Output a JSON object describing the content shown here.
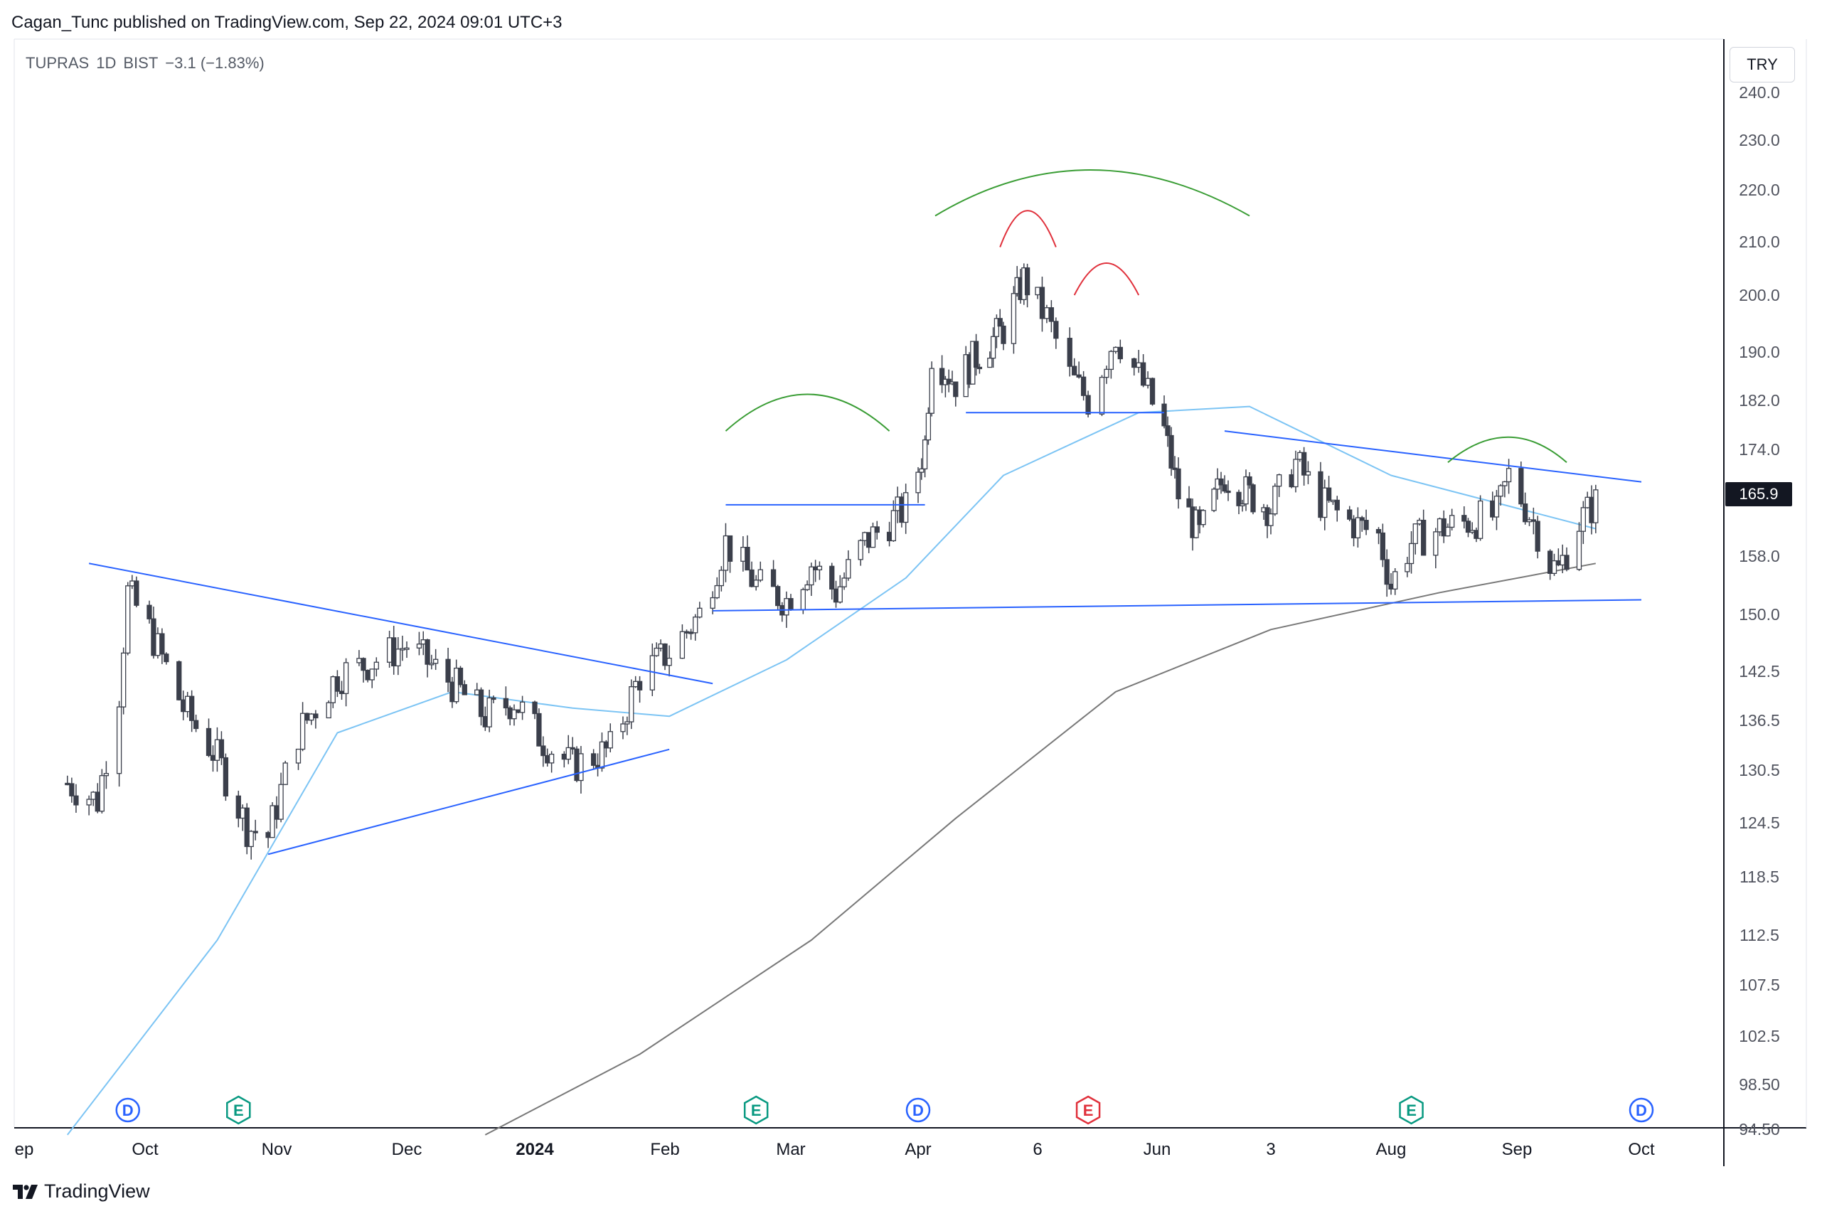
{
  "header": {
    "publisher_line": "Cagan_Tunc published on TradingView.com, Sep 22, 2024 09:01 UTC+3"
  },
  "symbol": {
    "name": "TUPRAS",
    "interval": "1D",
    "exchange": "BIST",
    "change": "−3.1 (−1.83%)"
  },
  "currency": "TRY",
  "last_price_label": "165.9",
  "brand": {
    "name": "TradingView",
    "logo_icon": "tradingview-logo-icon"
  },
  "colors": {
    "up_candle": "#ffffff",
    "down_candle": "#3b3f4b",
    "trendline": "#2962ff",
    "ma_short": "#7cc4f4",
    "ma_long": "#787878",
    "arc_green": "#3a9d35",
    "arc_red": "#e0303b"
  },
  "chart_data": {
    "type": "candlestick",
    "title": "TUPRAS, 1D, BIST",
    "y_ticks": [
      "240.0",
      "230.0",
      "220.0",
      "210.0",
      "200.0",
      "190.0",
      "182.0",
      "174.0",
      "165.9",
      "158.0",
      "150.0",
      "142.5",
      "136.5",
      "130.5",
      "124.5",
      "118.5",
      "112.5",
      "107.5",
      "102.5",
      "98.50",
      "94.50"
    ],
    "x_labels": [
      "ep",
      "Oct",
      "Nov",
      "Dec",
      "2024",
      "Feb",
      "Mar",
      "Apr",
      "6",
      "Jun",
      "3",
      "Aug",
      "Sep",
      "Oct"
    ],
    "last_price": 165.9,
    "close_path": [
      {
        "date": "2023-09-13",
        "close": 129
      },
      {
        "date": "2023-09-20",
        "close": 127
      },
      {
        "date": "2023-09-25",
        "close": 140
      },
      {
        "date": "2023-09-27",
        "close": 153
      },
      {
        "date": "2023-10-02",
        "close": 148
      },
      {
        "date": "2023-10-10",
        "close": 138
      },
      {
        "date": "2023-10-18",
        "close": 132
      },
      {
        "date": "2023-10-25",
        "close": 124
      },
      {
        "date": "2023-10-30",
        "close": 123
      },
      {
        "date": "2023-11-06",
        "close": 135
      },
      {
        "date": "2023-11-15",
        "close": 142
      },
      {
        "date": "2023-11-24",
        "close": 144
      },
      {
        "date": "2023-12-01",
        "close": 146
      },
      {
        "date": "2023-12-12",
        "close": 141
      },
      {
        "date": "2023-12-20",
        "close": 137
      },
      {
        "date": "2023-12-27",
        "close": 139
      },
      {
        "date": "2024-01-03",
        "close": 134
      },
      {
        "date": "2024-01-10",
        "close": 131
      },
      {
        "date": "2024-01-19",
        "close": 133
      },
      {
        "date": "2024-01-26",
        "close": 142
      },
      {
        "date": "2024-02-02",
        "close": 145
      },
      {
        "date": "2024-02-09",
        "close": 150
      },
      {
        "date": "2024-02-15",
        "close": 160
      },
      {
        "date": "2024-02-22",
        "close": 154
      },
      {
        "date": "2024-02-29",
        "close": 152
      },
      {
        "date": "2024-03-06",
        "close": 157
      },
      {
        "date": "2024-03-12",
        "close": 153
      },
      {
        "date": "2024-03-19",
        "close": 160
      },
      {
        "date": "2024-03-25",
        "close": 163
      },
      {
        "date": "2024-03-29",
        "close": 165
      },
      {
        "date": "2024-04-03",
        "close": 175
      },
      {
        "date": "2024-04-05",
        "close": 190
      },
      {
        "date": "2024-04-12",
        "close": 185
      },
      {
        "date": "2024-04-19",
        "close": 190
      },
      {
        "date": "2024-04-26",
        "close": 194
      },
      {
        "date": "2024-05-02",
        "close": 203
      },
      {
        "date": "2024-05-08",
        "close": 196
      },
      {
        "date": "2024-05-13",
        "close": 186
      },
      {
        "date": "2024-05-17",
        "close": 182
      },
      {
        "date": "2024-05-23",
        "close": 193
      },
      {
        "date": "2024-05-28",
        "close": 186
      },
      {
        "date": "2024-06-03",
        "close": 177
      },
      {
        "date": "2024-06-07",
        "close": 167
      },
      {
        "date": "2024-06-13",
        "close": 161
      },
      {
        "date": "2024-06-20",
        "close": 170
      },
      {
        "date": "2024-06-27",
        "close": 167
      },
      {
        "date": "2024-07-03",
        "close": 165
      },
      {
        "date": "2024-07-09",
        "close": 172
      },
      {
        "date": "2024-07-15",
        "close": 166
      },
      {
        "date": "2024-07-22",
        "close": 163
      },
      {
        "date": "2024-07-29",
        "close": 161
      },
      {
        "date": "2024-08-01",
        "close": 154
      },
      {
        "date": "2024-08-06",
        "close": 160
      },
      {
        "date": "2024-08-13",
        "close": 162
      },
      {
        "date": "2024-08-20",
        "close": 163
      },
      {
        "date": "2024-08-27",
        "close": 164
      },
      {
        "date": "2024-08-30",
        "close": 170
      },
      {
        "date": "2024-09-05",
        "close": 163
      },
      {
        "date": "2024-09-09",
        "close": 157
      },
      {
        "date": "2024-09-11",
        "close": 156
      },
      {
        "date": "2024-09-16",
        "close": 163
      },
      {
        "date": "2024-09-20",
        "close": 165.9
      }
    ],
    "ma_short": [
      {
        "date": "2023-09-13",
        "value": 94
      },
      {
        "date": "2023-10-18",
        "value": 112
      },
      {
        "date": "2023-11-15",
        "value": 135
      },
      {
        "date": "2023-12-12",
        "value": 140
      },
      {
        "date": "2024-01-10",
        "value": 138
      },
      {
        "date": "2024-02-02",
        "value": 137
      },
      {
        "date": "2024-02-29",
        "value": 144
      },
      {
        "date": "2024-03-29",
        "value": 155
      },
      {
        "date": "2024-04-26",
        "value": 170
      },
      {
        "date": "2024-05-28",
        "value": 180
      },
      {
        "date": "2024-06-27",
        "value": 181
      },
      {
        "date": "2024-08-01",
        "value": 170
      },
      {
        "date": "2024-09-20",
        "value": 162
      }
    ],
    "ma_long": [
      {
        "date": "2023-12-20",
        "value": 94
      },
      {
        "date": "2024-01-26",
        "value": 101
      },
      {
        "date": "2024-03-06",
        "value": 112
      },
      {
        "date": "2024-04-12",
        "value": 125
      },
      {
        "date": "2024-05-23",
        "value": 140
      },
      {
        "date": "2024-07-03",
        "value": 148
      },
      {
        "date": "2024-08-13",
        "value": 153
      },
      {
        "date": "2024-09-20",
        "value": 157
      }
    ],
    "event_markers": [
      {
        "type": "D",
        "date": "2023-09-27"
      },
      {
        "type": "E",
        "date": "2023-10-23"
      },
      {
        "type": "E",
        "date": "2024-02-22"
      },
      {
        "type": "D",
        "date": "2024-04-01"
      },
      {
        "type": "E",
        "date": "2024-05-17"
      },
      {
        "type": "E",
        "date": "2024-08-06"
      },
      {
        "type": "D",
        "date": "2024-10-01"
      }
    ],
    "drawings": [
      {
        "type": "trendline",
        "from": {
          "date": "2023-09-18",
          "price": 157
        },
        "to": {
          "date": "2024-02-12",
          "price": 141
        }
      },
      {
        "type": "trendline",
        "from": {
          "date": "2023-10-30",
          "price": 121
        },
        "to": {
          "date": "2024-02-02",
          "price": 133
        }
      },
      {
        "type": "horizontal",
        "price": 165.5,
        "from": "2024-02-15",
        "to": "2024-04-03"
      },
      {
        "type": "trendline",
        "from": {
          "date": "2024-02-12",
          "price": 150.5
        },
        "to": {
          "date": "2024-10-01",
          "price": 152
        }
      },
      {
        "type": "horizontal",
        "price": 180,
        "from": "2024-04-15",
        "to": "2024-06-03"
      },
      {
        "type": "trendline",
        "from": {
          "date": "2024-06-20",
          "price": 177
        },
        "to": {
          "date": "2024-10-01",
          "price": 169
        }
      }
    ],
    "grid": false,
    "legend": "top-left"
  }
}
